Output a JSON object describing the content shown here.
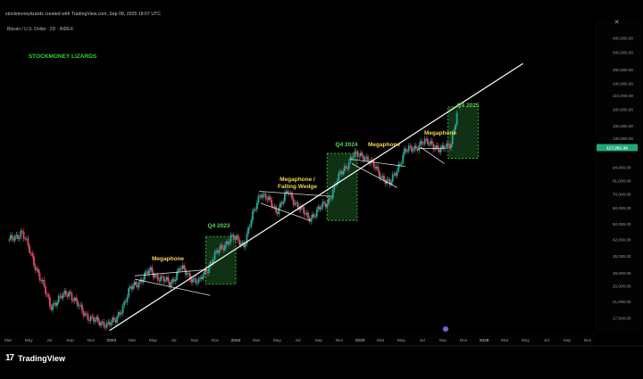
{
  "credit": "stockmoneylizards created with TradingView.com, Sep 08, 2025 18:07 UTC",
  "symbol_line": "Bitcoin / U.S. Dollar · 2D · INDEX",
  "brand": "STOCKMONEY LIZARDS",
  "footer": {
    "logo_mark": "17",
    "logo_text": "TradingView"
  },
  "colors": {
    "background": "#000000",
    "up": "#22a89a",
    "down": "#e04a63",
    "brand": "#2fd22f",
    "pattern_label": "#f3d54c",
    "quarter_label": "#5ad95a",
    "quarter_box": "#1d5a24",
    "trendline": "#ffffff",
    "price_tag": "#1fa87f"
  },
  "chart_data": {
    "type": "candlestick",
    "title": "Bitcoin / U.S. Dollar · 2D · INDEX",
    "ylabel": "",
    "y_scale": "log",
    "ylim": [
      15000,
      480000
    ],
    "x_ticks": [
      "Mar",
      "May",
      "Jul",
      "Sep",
      "Nov",
      "2023",
      "Mar",
      "May",
      "Jul",
      "Sep",
      "Nov",
      "2024",
      "Mar",
      "May",
      "Jul",
      "Sep",
      "Nov",
      "2025",
      "Mar",
      "May",
      "Jul",
      "Sep",
      "Nov",
      "2026",
      "Mar",
      "May",
      "Jul",
      "Sep",
      "Nov"
    ],
    "y_ticks": [
      "400,000.00",
      "340,000.00",
      "280,000.00",
      "240,000.00",
      "210,000.00",
      "180,000.00",
      "150,000.00",
      "130,000.00",
      "94,000.00",
      "81,000.00",
      "70,000.00",
      "60,000.00",
      "50,000.00",
      "42,000.00",
      "35,000.00",
      "29,000.00",
      "25,000.00",
      "21,000.00",
      "17,500.00",
      "14,500.00"
    ],
    "current_price": "117,251.30",
    "price_path": [
      [
        "2022-02-15",
        41000
      ],
      [
        "2022-03-25",
        46000
      ],
      [
        "2022-05-10",
        30000
      ],
      [
        "2022-06-20",
        20000
      ],
      [
        "2022-08-15",
        23500
      ],
      [
        "2022-09-20",
        19000
      ],
      [
        "2022-11-10",
        16500
      ],
      [
        "2022-12-31",
        16600
      ],
      [
        "2023-02-15",
        24000
      ],
      [
        "2023-04-15",
        29500
      ],
      [
        "2023-06-15",
        25500
      ],
      [
        "2023-07-15",
        30500
      ],
      [
        "2023-09-10",
        25800
      ],
      [
        "2023-10-25",
        34500
      ],
      [
        "2023-12-15",
        43000
      ],
      [
        "2024-01-25",
        40000
      ],
      [
        "2024-03-14",
        72000
      ],
      [
        "2024-05-01",
        58000
      ],
      [
        "2024-06-05",
        71000
      ],
      [
        "2024-08-05",
        53000
      ],
      [
        "2024-09-30",
        63000
      ],
      [
        "2024-11-12",
        88000
      ],
      [
        "2024-12-17",
        107000
      ],
      [
        "2025-01-20",
        108000
      ],
      [
        "2025-04-08",
        77000
      ],
      [
        "2025-05-22",
        111000
      ],
      [
        "2025-07-14",
        123000
      ],
      [
        "2025-08-14",
        124000
      ],
      [
        "2025-09-08",
        112000
      ],
      [
        "2025-10-10",
        125000
      ],
      [
        "2025-11-01",
        180000
      ]
    ],
    "trendline": {
      "start": [
        "2022-12-15",
        15200
      ],
      "end": [
        "2026-05-15",
        300000
      ]
    },
    "annotations": [
      {
        "text": "STOCKMONEY LIZARDS"
      },
      {
        "text": "Megaphone"
      },
      {
        "text": "Q4 2023"
      },
      {
        "text": "Megaphone / Falling Wedge",
        "lines": [
          "Megaphone /",
          "Falling Wedge"
        ]
      },
      {
        "text": "Q4 2024"
      },
      {
        "text": "Megaphone"
      },
      {
        "text": "Megaphone"
      },
      {
        "text": "Q4 2025"
      }
    ],
    "quarter_boxes": [
      {
        "label": "Q4 2023",
        "start": "2023-10-01",
        "end": "2023-12-31",
        "low": 25500,
        "high": 43500
      },
      {
        "label": "Q4 2024",
        "start": "2024-10-01",
        "end": "2024-12-31",
        "low": 52000,
        "high": 110000
      },
      {
        "label": "Q4 2025",
        "start": "2025-10-01",
        "end": "2025-12-31",
        "low": 104000,
        "high": 185000
      }
    ],
    "pattern_lines": [
      {
        "name": "Megaphone 2023",
        "segments": [
          [
            [
              "2023-03-01",
              28000
            ],
            [
              "2023-10-05",
              30000
            ]
          ],
          [
            [
              "2023-03-01",
              27000
            ],
            [
              "2023-10-15",
              22500
            ]
          ]
        ]
      },
      {
        "name": "Megaphone / Falling Wedge 2024",
        "segments": [
          [
            [
              "2024-03-10",
              72000
            ],
            [
              "2024-10-15",
              68000
            ]
          ],
          [
            [
              "2024-03-15",
              63000
            ],
            [
              "2024-08-10",
              52000
            ]
          ]
        ]
      },
      {
        "name": "Megaphone 2025",
        "segments": [
          [
            [
              "2024-12-10",
              103000
            ],
            [
              "2025-05-25",
              95000
            ]
          ],
          [
            [
              "2024-12-15",
              98000
            ],
            [
              "2025-05-01",
              75000
            ]
          ]
        ]
      },
      {
        "name": "Megaphone Q3 2025",
        "segments": [
          [
            [
              "2025-07-05",
              116000
            ],
            [
              "2025-09-20",
              116500
            ]
          ],
          [
            [
              "2025-07-10",
              118000
            ],
            [
              "2025-09-20",
              98000
            ]
          ]
        ]
      }
    ]
  }
}
